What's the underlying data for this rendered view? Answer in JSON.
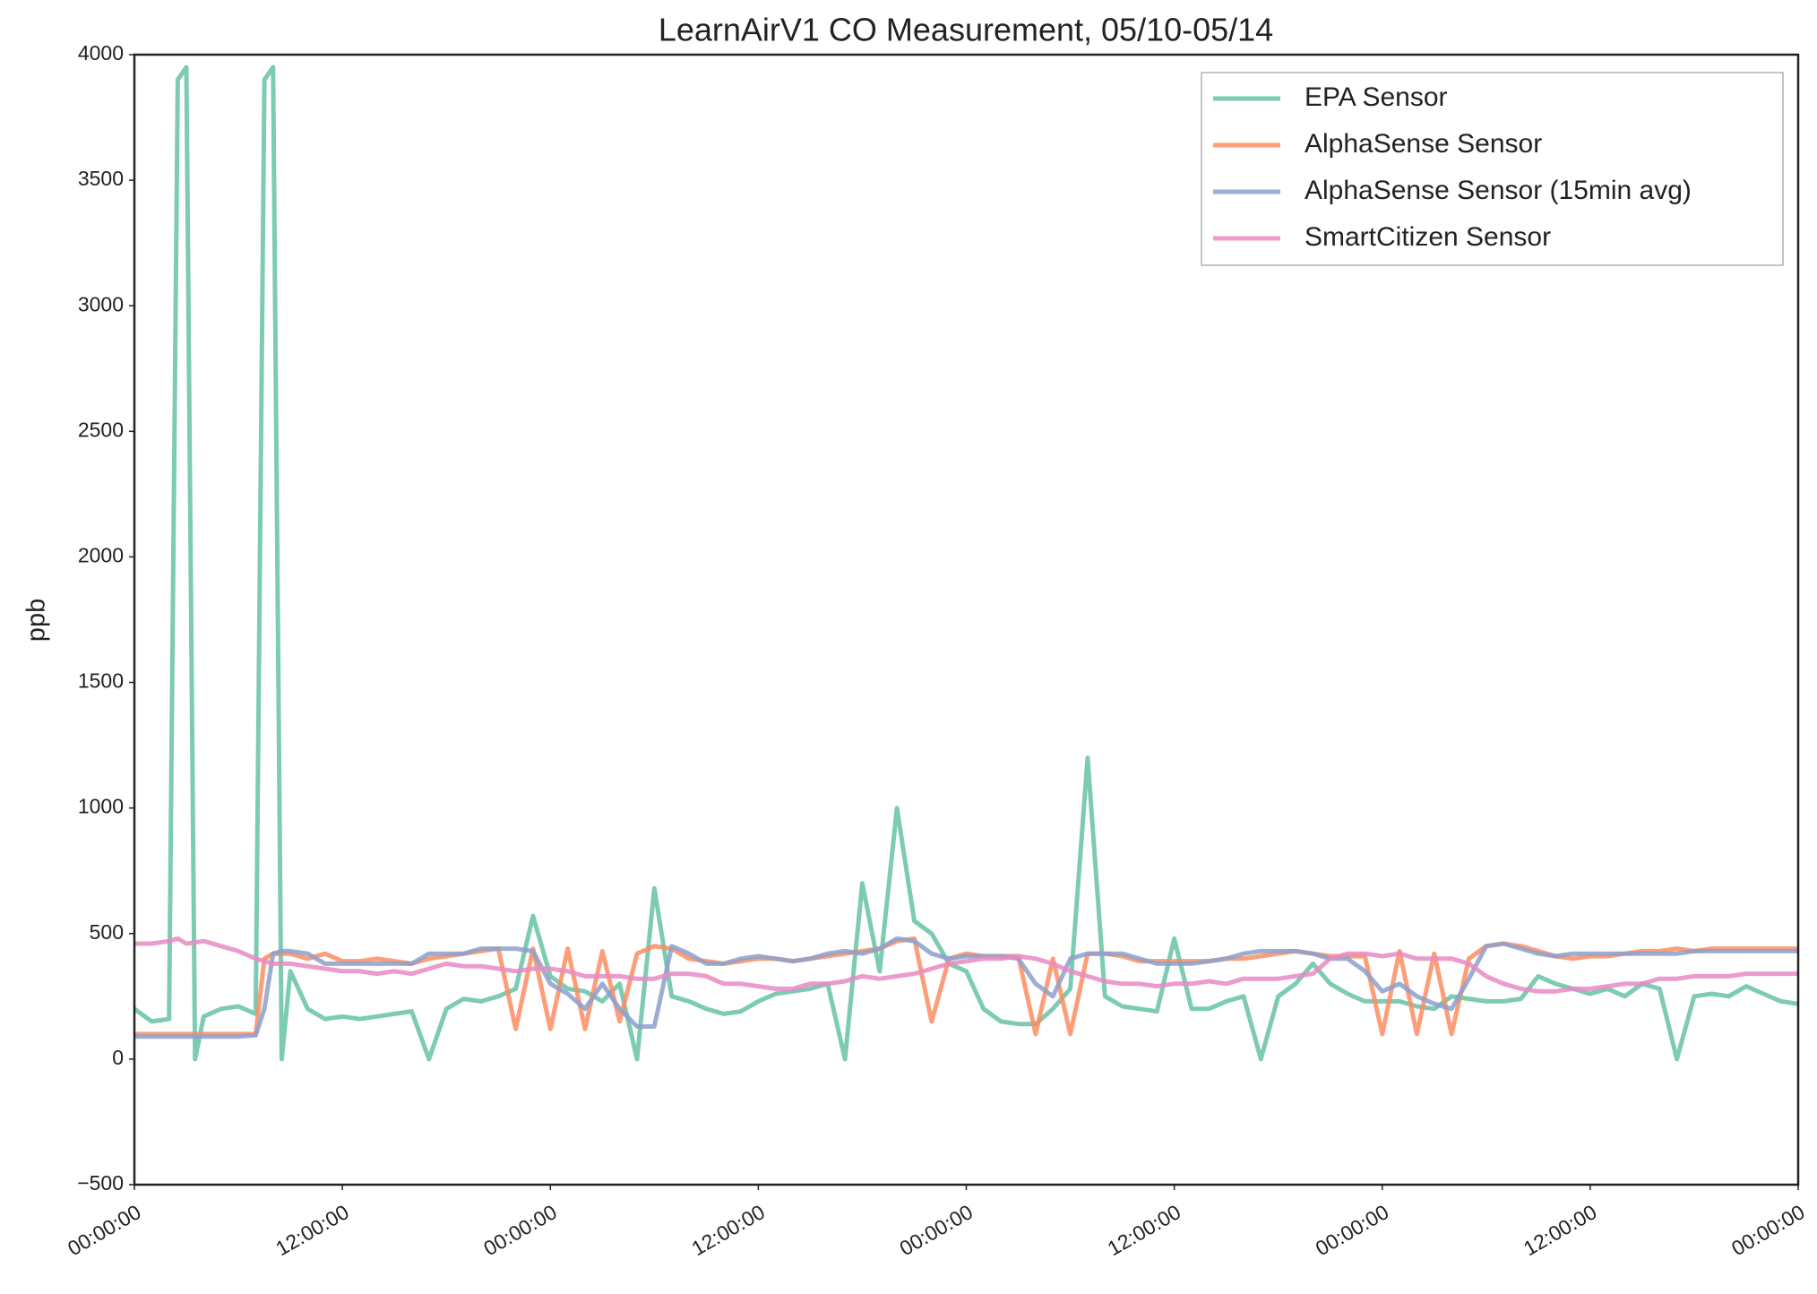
{
  "chart_data": {
    "type": "line",
    "title": "LearnAirV1 CO Measurement, 05/10-05/14",
    "y_label": "ppb",
    "x": [
      0,
      1,
      2,
      2.5,
      3,
      3.5,
      4,
      5,
      6,
      7,
      7.5,
      8,
      8.5,
      9,
      10,
      11,
      12,
      13,
      14,
      15,
      16,
      17,
      18,
      19,
      20,
      21,
      22,
      23,
      24,
      25,
      26,
      27,
      28,
      29,
      30,
      31,
      32,
      33,
      34,
      35,
      36,
      37,
      38,
      39,
      40,
      41,
      42,
      43,
      44,
      45,
      46,
      47,
      48,
      49,
      50,
      51,
      52,
      53,
      54,
      55,
      56,
      57,
      58,
      59,
      60,
      61,
      62,
      63,
      64,
      65,
      66,
      67,
      68,
      69,
      70,
      71,
      72,
      73,
      74,
      75,
      76,
      77,
      78,
      79,
      80,
      81,
      82,
      83,
      84,
      85,
      86,
      87,
      88,
      89,
      90,
      91,
      92,
      93,
      94,
      95,
      96
    ],
    "xlim": [
      0,
      96
    ],
    "xticks": [
      {
        "value": 0,
        "label": "00:00:00"
      },
      {
        "value": 12,
        "label": "12:00:00"
      },
      {
        "value": 24,
        "label": "00:00:00"
      },
      {
        "value": 36,
        "label": "12:00:00"
      },
      {
        "value": 48,
        "label": "00:00:00"
      },
      {
        "value": 60,
        "label": "12:00:00"
      },
      {
        "value": 72,
        "label": "00:00:00"
      },
      {
        "value": 84,
        "label": "12:00:00"
      },
      {
        "value": 96,
        "label": "00:00:00"
      }
    ],
    "ylim": [
      -500,
      4000
    ],
    "yticks": [
      {
        "value": -500,
        "label": "−500"
      },
      0,
      500,
      1000,
      1500,
      2000,
      2500,
      3000,
      3500,
      4000
    ],
    "grid": false,
    "legend": "upper right",
    "series": [
      {
        "name": "EPA Sensor",
        "color": "#66c2a5",
        "values": [
          200,
          150,
          160,
          3900,
          3950,
          0,
          170,
          200,
          210,
          180,
          3900,
          3950,
          0,
          350,
          200,
          160,
          170,
          160,
          170,
          180,
          190,
          0,
          200,
          240,
          230,
          250,
          280,
          570,
          330,
          280,
          270,
          230,
          300,
          0,
          680,
          250,
          230,
          200,
          180,
          190,
          230,
          260,
          270,
          280,
          300,
          0,
          700,
          350,
          1000,
          550,
          500,
          380,
          350,
          200,
          150,
          140,
          140,
          200,
          280,
          1200,
          250,
          210,
          200,
          190,
          480,
          200,
          200,
          230,
          250,
          0,
          250,
          300,
          380,
          300,
          260,
          230,
          230,
          230,
          210,
          200,
          250,
          240,
          230,
          230,
          240,
          330,
          300,
          280,
          260,
          280,
          250,
          300,
          280,
          0,
          250,
          260,
          250,
          290,
          260,
          230,
          220
        ]
      },
      {
        "name": "AlphaSense Sensor",
        "color": "#fc8d62",
        "values": [
          100,
          100,
          100,
          100,
          100,
          100,
          100,
          100,
          100,
          100,
          400,
          420,
          420,
          420,
          400,
          420,
          390,
          390,
          400,
          390,
          380,
          400,
          410,
          420,
          430,
          440,
          120,
          440,
          120,
          440,
          120,
          430,
          150,
          420,
          450,
          440,
          400,
          390,
          380,
          390,
          400,
          400,
          390,
          400,
          410,
          420,
          430,
          440,
          470,
          480,
          150,
          400,
          420,
          410,
          410,
          410,
          100,
          400,
          100,
          420,
          420,
          410,
          390,
          390,
          390,
          390,
          390,
          400,
          400,
          410,
          420,
          430,
          420,
          410,
          410,
          410,
          100,
          430,
          100,
          420,
          100,
          400,
          450,
          460,
          450,
          430,
          410,
          400,
          410,
          410,
          420,
          430,
          430,
          440,
          430,
          440,
          440,
          440,
          440,
          440,
          440
        ]
      },
      {
        "name": "AlphaSense Sensor (15min avg)",
        "color": "#8da0cb",
        "values": [
          90,
          90,
          90,
          90,
          90,
          90,
          90,
          90,
          90,
          95,
          200,
          420,
          430,
          430,
          420,
          380,
          380,
          380,
          380,
          380,
          380,
          420,
          420,
          420,
          440,
          440,
          440,
          430,
          300,
          260,
          200,
          300,
          200,
          130,
          130,
          450,
          420,
          380,
          380,
          400,
          410,
          400,
          390,
          400,
          420,
          430,
          420,
          440,
          480,
          470,
          420,
          400,
          410,
          410,
          410,
          400,
          300,
          250,
          400,
          420,
          420,
          420,
          400,
          380,
          380,
          380,
          390,
          400,
          420,
          430,
          430,
          430,
          420,
          400,
          400,
          350,
          270,
          300,
          250,
          220,
          200,
          320,
          450,
          460,
          440,
          420,
          410,
          420,
          420,
          420,
          420,
          420,
          420,
          420,
          430,
          430,
          430,
          430,
          430,
          430,
          430
        ]
      },
      {
        "name": "SmartCitizen Sensor",
        "color": "#e78ac3",
        "values": [
          460,
          460,
          470,
          480,
          460,
          465,
          470,
          450,
          430,
          400,
          390,
          380,
          380,
          380,
          370,
          360,
          350,
          350,
          340,
          350,
          340,
          360,
          380,
          370,
          370,
          360,
          350,
          360,
          360,
          350,
          330,
          330,
          330,
          320,
          320,
          340,
          340,
          330,
          300,
          300,
          290,
          280,
          280,
          300,
          300,
          310,
          330,
          320,
          330,
          340,
          360,
          380,
          390,
          400,
          400,
          410,
          400,
          380,
          350,
          330,
          310,
          300,
          300,
          290,
          300,
          300,
          310,
          300,
          320,
          320,
          320,
          330,
          340,
          400,
          420,
          420,
          410,
          420,
          400,
          400,
          400,
          380,
          330,
          300,
          280,
          270,
          270,
          280,
          280,
          290,
          300,
          300,
          320,
          320,
          330,
          330,
          330,
          340,
          340,
          340,
          340
        ]
      }
    ]
  }
}
